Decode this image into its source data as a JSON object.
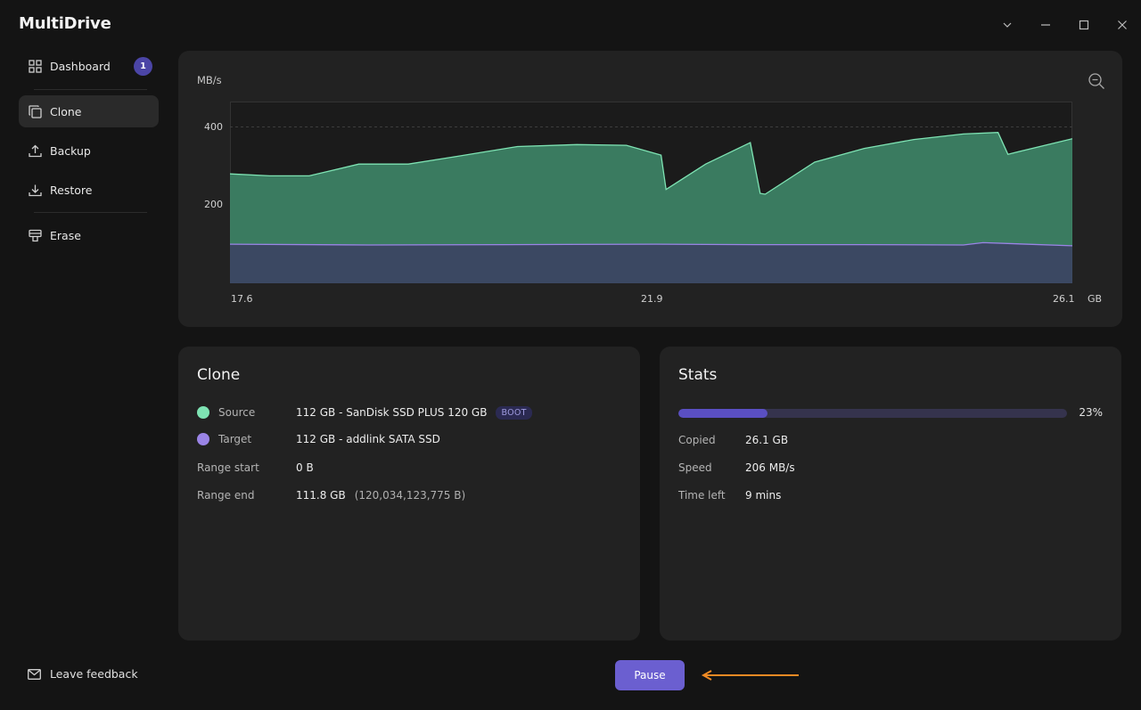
{
  "app": {
    "title": "MultiDrive"
  },
  "window_controls": [
    "chevron-down",
    "minimize",
    "maximize",
    "close"
  ],
  "sidebar": {
    "items": [
      {
        "label": "Dashboard",
        "icon": "grid-icon",
        "badge": "1",
        "active": false
      },
      {
        "label": "Clone",
        "icon": "clone-icon",
        "active": true
      },
      {
        "label": "Backup",
        "icon": "upload-icon",
        "active": false
      },
      {
        "label": "Restore",
        "icon": "download-icon",
        "active": false
      },
      {
        "label": "Erase",
        "icon": "eraser-icon",
        "active": false
      }
    ],
    "feedback_label": "Leave feedback"
  },
  "chart_data": {
    "type": "area",
    "ylabel": "MB/s",
    "xunit": "GB",
    "x_ticks": [
      "17.6",
      "21.9",
      "26.1"
    ],
    "y_ticks": [
      "400",
      "200"
    ],
    "xlim": [
      17.6,
      26.1
    ],
    "ylim": [
      0,
      465
    ],
    "grid": false,
    "series": [
      {
        "name": "Source",
        "color": "#7ee3b3",
        "fill": "#3f8c6c",
        "x": [
          17.6,
          18.0,
          18.4,
          18.9,
          19.4,
          19.9,
          20.5,
          21.1,
          21.6,
          21.95,
          22.0,
          22.4,
          22.85,
          22.95,
          23.0,
          23.5,
          24.0,
          24.5,
          25.0,
          25.35,
          25.45,
          26.1
        ],
        "y": [
          280,
          275,
          275,
          305,
          305,
          325,
          350,
          355,
          353,
          328,
          240,
          305,
          360,
          230,
          228,
          310,
          345,
          368,
          382,
          386,
          330,
          370
        ]
      },
      {
        "name": "Target",
        "color": "#9a84e6",
        "fill": "#3c3f63",
        "x": [
          17.6,
          19.0,
          20.4,
          21.9,
          22.9,
          24.0,
          25.0,
          25.2,
          26.1
        ],
        "y": [
          100,
          98,
          99,
          100,
          99,
          99,
          98,
          104,
          96
        ]
      }
    ]
  },
  "clone": {
    "title": "Clone",
    "source_label": "Source",
    "source_value": "112 GB - SanDisk SSD PLUS 120 GB",
    "source_badge": "BOOT",
    "target_label": "Target",
    "target_value": "112 GB - addlink SATA SSD",
    "range_start_label": "Range start",
    "range_start_value": "0 B",
    "range_end_label": "Range end",
    "range_end_value": "111.8 GB",
    "range_end_bytes": "(120,034,123,775 B)",
    "source_color": "#7ee3b3",
    "target_color": "#9a84e6"
  },
  "stats": {
    "title": "Stats",
    "progress": 0.23,
    "progress_label": "23%",
    "copied_label": "Copied",
    "copied_value": "26.1 GB",
    "speed_label": "Speed",
    "speed_value": "206 MB/s",
    "time_left_label": "Time left",
    "time_left_value": "9 mins"
  },
  "actions": {
    "pause_label": "Pause"
  },
  "annotation": {
    "arrow_color": "#f08a24"
  }
}
